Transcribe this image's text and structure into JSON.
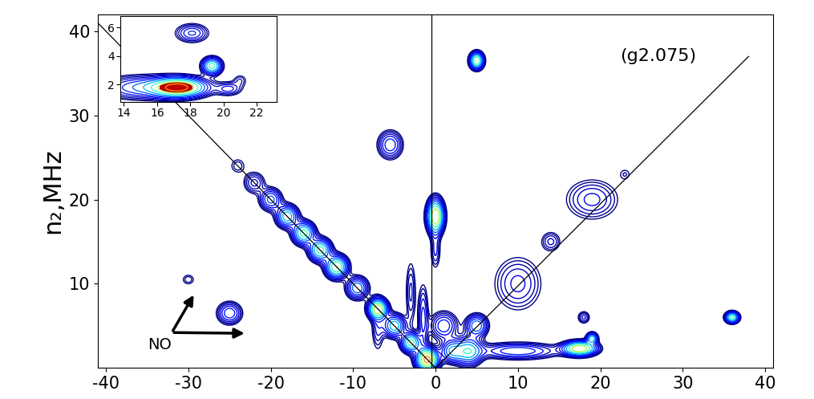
{
  "chart_data": {
    "type": "contour",
    "ylabel": "n₂,MHz",
    "xlim": [
      -41,
      41
    ],
    "ylim": [
      0,
      42
    ],
    "xticks": [
      -40,
      -30,
      -20,
      -10,
      0,
      10,
      20,
      30,
      40
    ],
    "yticks": [
      10,
      20,
      30,
      40
    ],
    "peaks": [
      {
        "x": -1,
        "y": 1,
        "height": 1.0,
        "width_x": 0.8,
        "width_y": 0.8
      },
      {
        "x": -3,
        "y": 3,
        "height": 0.6,
        "width_x": 0.7,
        "width_y": 0.7
      },
      {
        "x": -5,
        "y": 5,
        "height": 0.5,
        "width_x": 0.8,
        "width_y": 0.8
      },
      {
        "x": -7,
        "y": 7,
        "height": 0.8,
        "width_x": 0.7,
        "width_y": 0.7
      },
      {
        "x": -9.5,
        "y": 9.5,
        "height": 0.4,
        "width_x": 0.8,
        "width_y": 0.8
      },
      {
        "x": -12,
        "y": 12,
        "height": 0.7,
        "width_x": 0.8,
        "width_y": 0.8
      },
      {
        "x": -14,
        "y": 14,
        "height": 0.6,
        "width_x": 0.8,
        "width_y": 0.8
      },
      {
        "x": -16,
        "y": 16,
        "height": 0.6,
        "width_x": 0.8,
        "width_y": 0.8
      },
      {
        "x": -18,
        "y": 18,
        "height": 0.5,
        "width_x": 0.8,
        "width_y": 0.8
      },
      {
        "x": -20,
        "y": 20,
        "height": 0.35,
        "width_x": 0.8,
        "width_y": 0.8
      },
      {
        "x": -22,
        "y": 22,
        "height": 0.2,
        "width_x": 0.8,
        "width_y": 0.8
      },
      {
        "x": -24,
        "y": 24,
        "height": 0.1,
        "width_x": 0.7,
        "width_y": 0.7
      },
      {
        "x": -3,
        "y": 9,
        "height": 0.15,
        "width_x": 0.4,
        "width_y": 2.5
      },
      {
        "x": -1.5,
        "y": 6,
        "height": 0.2,
        "width_x": 0.4,
        "width_y": 2.5
      },
      {
        "x": -7,
        "y": 5,
        "height": 0.15,
        "width_x": 0.5,
        "width_y": 2
      },
      {
        "x": 0,
        "y": 18,
        "height": 0.9,
        "width_x": 0.6,
        "width_y": 1.2
      },
      {
        "x": 0,
        "y": 14,
        "height": 0.15,
        "width_x": 0.4,
        "width_y": 1.5
      },
      {
        "x": -5.5,
        "y": 26.5,
        "height": 0.3,
        "width_x": 0.9,
        "width_y": 1.0
      },
      {
        "x": 5,
        "y": 36.5,
        "height": 0.7,
        "width_x": 0.5,
        "width_y": 0.6
      },
      {
        "x": 36,
        "y": 6,
        "height": 0.6,
        "width_x": 0.5,
        "width_y": 0.4
      },
      {
        "x": -25,
        "y": 6.5,
        "height": 0.3,
        "width_x": 0.9,
        "width_y": 0.8
      },
      {
        "x": -30,
        "y": 10.5,
        "height": 0.1,
        "width_x": 0.6,
        "width_y": 0.5
      },
      {
        "x": 17.5,
        "y": 2.3,
        "height": 0.9,
        "width_x": 1.2,
        "width_y": 0.5
      },
      {
        "x": 19,
        "y": 3.5,
        "height": 0.5,
        "width_x": 0.4,
        "width_y": 0.4
      },
      {
        "x": 10,
        "y": 2,
        "height": 0.3,
        "width_x": 3,
        "width_y": 0.6
      },
      {
        "x": 4,
        "y": 2,
        "height": 0.5,
        "width_x": 1.0,
        "width_y": 1.0
      },
      {
        "x": 2,
        "y": 2,
        "height": 0.4,
        "width_x": 0.8,
        "width_y": 0.8
      },
      {
        "x": 5,
        "y": 5,
        "height": 0.4,
        "width_x": 0.8,
        "width_y": 0.8
      },
      {
        "x": 10,
        "y": 10,
        "height": 0.2,
        "width_x": 1.8,
        "width_y": 2
      },
      {
        "x": 14,
        "y": 15,
        "height": 0.15,
        "width_x": 0.8,
        "width_y": 0.8
      },
      {
        "x": 19,
        "y": 20,
        "height": 0.2,
        "width_x": 2,
        "width_y": 1.5
      },
      {
        "x": 23,
        "y": 23,
        "height": 0.08,
        "width_x": 0.6,
        "width_y": 0.6
      },
      {
        "x": 18,
        "y": 6,
        "height": 0.15,
        "width_x": 0.5,
        "width_y": 0.5
      },
      {
        "x": 1,
        "y": 5,
        "height": 0.3,
        "width_x": 1.0,
        "width_y": 1.0
      }
    ],
    "lines": [
      {
        "x": [
          0,
          -41
        ],
        "y": [
          0,
          41
        ]
      },
      {
        "x": [
          -0.5,
          -0.5
        ],
        "y": [
          0,
          42
        ]
      },
      {
        "x": [
          0,
          38
        ],
        "y": [
          0,
          37
        ],
        "label": "(g2.075)",
        "label_x": 27,
        "label_y": 37
      }
    ],
    "annotations": [
      {
        "text": "NO",
        "x": -33.5,
        "y": 2.7,
        "points": [
          [
            -29.2,
            8.9
          ],
          [
            -22.9,
            4.1
          ]
        ]
      }
    ],
    "inset": {
      "xlim": [
        13.8,
        23.2
      ],
      "ylim": [
        0.8,
        6.8
      ],
      "xticks": [
        14,
        16,
        18,
        20,
        22
      ],
      "yticks": [
        2,
        4,
        6
      ],
      "peaks": [
        {
          "x": 17.3,
          "y": 1.8,
          "height": 1.0,
          "width_x": 1.0,
          "width_y": 0.4
        },
        {
          "x": 19.3,
          "y": 3.3,
          "height": 0.6,
          "width_x": 0.35,
          "width_y": 0.35
        },
        {
          "x": 18.1,
          "y": 5.6,
          "height": 0.25,
          "width_x": 0.6,
          "width_y": 0.4
        },
        {
          "x": 21,
          "y": 2.3,
          "height": 0.1,
          "width_x": 0.3,
          "width_y": 0.3
        },
        {
          "x": 15,
          "y": 1.8,
          "height": 0.3,
          "width_x": 1.5,
          "width_y": 0.5
        },
        {
          "x": 20.3,
          "y": 1.7,
          "height": 0.2,
          "width_x": 0.5,
          "width_y": 0.3
        }
      ]
    }
  }
}
